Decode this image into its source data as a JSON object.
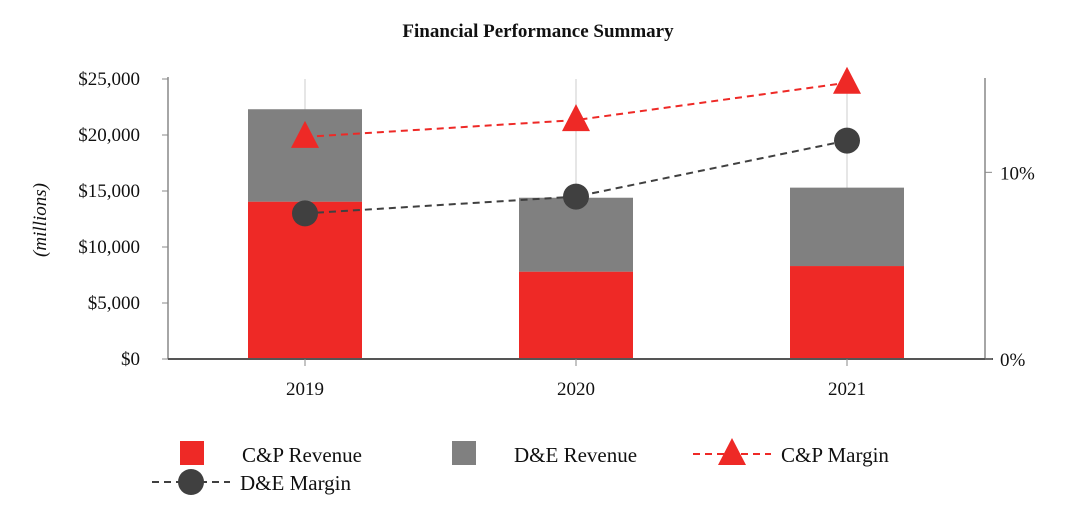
{
  "chart_data": {
    "type": "bar",
    "title": "Financial Performance Summary",
    "ylabel": "(millions)",
    "categories": [
      "2019",
      "2020",
      "2021"
    ],
    "stacked": true,
    "ylim": [
      0,
      25000
    ],
    "yticks": [
      "$0",
      "$5,000",
      "$10,000",
      "$15,000",
      "$20,000",
      "$25,000"
    ],
    "ytick_values": [
      0,
      5000,
      10000,
      15000,
      20000,
      25000
    ],
    "y2lim": [
      0,
      15
    ],
    "y2ticks": [
      "0%",
      "10%"
    ],
    "y2tick_values": [
      0,
      10
    ],
    "grid": "vertical",
    "legend_position": "bottom",
    "series": [
      {
        "name": "C&P Revenue",
        "type": "bar",
        "axis": "left",
        "color": "#ee2926",
        "values": [
          14050,
          7800,
          8300
        ]
      },
      {
        "name": "D&E Revenue",
        "type": "bar",
        "axis": "left",
        "color": "#808080",
        "values": [
          8250,
          6600,
          7000
        ]
      },
      {
        "name": "C&P Margin",
        "type": "line",
        "axis": "right",
        "unit": "%",
        "color": "#ee2926",
        "marker": "triangle",
        "dash": true,
        "values": [
          11.9,
          12.8,
          14.8
        ]
      },
      {
        "name": "D&E Margin",
        "type": "line",
        "axis": "right",
        "unit": "%",
        "color": "#404040",
        "marker": "circle",
        "dash": true,
        "values": [
          7.8,
          8.7,
          11.7
        ]
      }
    ]
  }
}
